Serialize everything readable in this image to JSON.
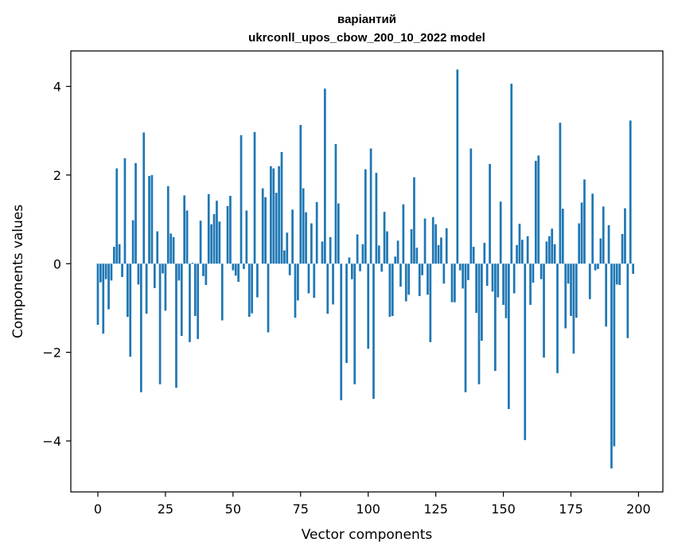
{
  "chart_data": {
    "type": "bar",
    "title_line1": "варіантий",
    "title_line2": "ukrconll_upos_cbow_200_10_2022 model",
    "xlabel": "Vector components",
    "ylabel": "Components values",
    "xlim": [
      -10,
      209
    ],
    "ylim": [
      -5.15,
      4.8
    ],
    "xticks": [
      0,
      25,
      50,
      75,
      100,
      125,
      150,
      175,
      200
    ],
    "xtick_labels": [
      "0",
      "25",
      "50",
      "75",
      "100",
      "125",
      "150",
      "175",
      "200"
    ],
    "yticks": [
      -4,
      -2,
      0,
      2,
      4
    ],
    "ytick_labels": [
      "−4",
      "−2",
      "0",
      "2",
      "4"
    ],
    "bar_color": "#1f77b4",
    "values": [
      -1.38,
      -0.42,
      -1.58,
      -0.35,
      -1.03,
      -0.38,
      0.38,
      2.15,
      0.44,
      -0.3,
      2.38,
      -1.2,
      -2.1,
      0.98,
      2.27,
      -0.47,
      -2.9,
      2.96,
      -1.13,
      1.98,
      2.0,
      -0.55,
      0.73,
      -2.72,
      -0.22,
      -1.06,
      1.75,
      0.68,
      0.6,
      -2.8,
      -0.38,
      -1.63,
      1.54,
      1.2,
      -1.77,
      0.02,
      -1.18,
      -1.7,
      0.97,
      -0.28,
      -0.48,
      1.57,
      0.89,
      1.12,
      1.42,
      0.95,
      -1.28,
      0.0,
      1.3,
      1.53,
      -0.15,
      -0.27,
      -0.41,
      2.9,
      -0.12,
      1.2,
      -1.2,
      -1.12,
      2.97,
      -0.76,
      0.0,
      1.7,
      1.5,
      -1.55,
      2.2,
      2.15,
      1.6,
      2.2,
      2.52,
      0.3,
      0.7,
      -0.26,
      1.22,
      -1.22,
      -0.83,
      3.13,
      1.7,
      1.16,
      -0.67,
      0.91,
      -0.77,
      1.39,
      0.0,
      0.5,
      3.95,
      -1.13,
      0.6,
      -0.92,
      2.7,
      1.36,
      -3.08,
      0.0,
      -2.24,
      0.14,
      -0.35,
      -2.72,
      0.66,
      -0.17,
      0.44,
      2.13,
      -1.92,
      2.6,
      -3.05,
      2.05,
      0.41,
      -0.18,
      1.17,
      0.73,
      -1.2,
      -1.18,
      0.16,
      0.52,
      -0.52,
      1.34,
      -0.85,
      -0.7,
      0.78,
      1.95,
      0.36,
      -0.73,
      -0.26,
      1.02,
      -0.7,
      -1.77,
      1.05,
      0.89,
      0.42,
      0.59,
      -0.45,
      0.8,
      0.0,
      -0.87,
      -0.87,
      4.38,
      -0.15,
      -0.56,
      -2.9,
      -0.37,
      2.6,
      0.38,
      -1.11,
      -2.72,
      -1.74,
      0.47,
      -0.5,
      2.25,
      -0.63,
      -2.42,
      -0.76,
      1.4,
      -0.93,
      -1.23,
      -3.28,
      4.06,
      -0.67,
      0.42,
      0.9,
      0.54,
      -3.98,
      0.62,
      -0.93,
      -0.43,
      2.32,
      2.44,
      -0.35,
      -2.12,
      0.5,
      0.62,
      0.79,
      0.44,
      -2.47,
      3.18,
      1.24,
      -1.46,
      -0.45,
      -1.18,
      -2.03,
      -1.22,
      0.91,
      1.38,
      1.9,
      0.0,
      -0.8,
      1.58,
      -0.15,
      -0.12,
      0.57,
      1.29,
      -1.42,
      0.87,
      -4.62,
      -4.12,
      -0.47,
      -0.48,
      0.67,
      1.25,
      -1.68,
      3.23,
      -0.23,
      0.0
    ]
  }
}
